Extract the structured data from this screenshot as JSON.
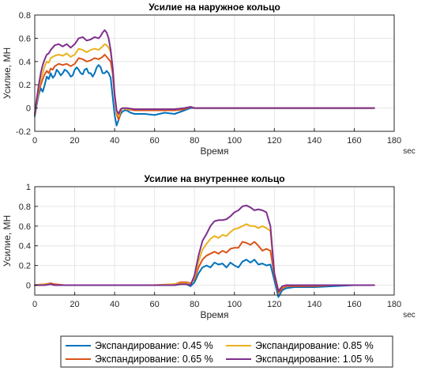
{
  "chart_data": [
    {
      "type": "line",
      "title": "Усилие на наружное кольцо",
      "xlabel": "Время",
      "xunit": "sec",
      "ylabel": "Усилие, МН",
      "xlim": [
        0,
        180
      ],
      "ylim": [
        -0.2,
        0.8
      ],
      "xticks": [
        0,
        20,
        40,
        60,
        80,
        100,
        120,
        140,
        160,
        180
      ],
      "yticks": [
        -0.2,
        0,
        0.2,
        0.4,
        0.6,
        0.8
      ],
      "ytick_labels": [
        "-0.2",
        "0",
        "0.2",
        "0.4",
        "0.6",
        "0.8"
      ],
      "grid": true,
      "series": [
        {
          "name": "Экспандирование: 0.45 %",
          "color": "#0072BD",
          "x": [
            0,
            1,
            2,
            3,
            4,
            5,
            6,
            7,
            8,
            9,
            10,
            11,
            12,
            13,
            14,
            15,
            16,
            17,
            18,
            19,
            20,
            21,
            22,
            23,
            24,
            25,
            26,
            27,
            28,
            29,
            30,
            31,
            32,
            33,
            34,
            35,
            36,
            37,
            38,
            39,
            40,
            41,
            42,
            43,
            44,
            45,
            46,
            48,
            50,
            55,
            60,
            65,
            70,
            75,
            78,
            80,
            90,
            100,
            120,
            140,
            160,
            170
          ],
          "y": [
            -0.07,
            0.03,
            0.12,
            0.17,
            0.14,
            0.2,
            0.27,
            0.25,
            0.3,
            0.26,
            0.28,
            0.33,
            0.31,
            0.28,
            0.3,
            0.33,
            0.32,
            0.3,
            0.27,
            0.28,
            0.33,
            0.35,
            0.33,
            0.3,
            0.29,
            0.33,
            0.34,
            0.3,
            0.3,
            0.27,
            0.3,
            0.35,
            0.37,
            0.35,
            0.3,
            0.3,
            0.32,
            0.3,
            0.26,
            0.1,
            -0.06,
            -0.15,
            -0.1,
            -0.05,
            -0.03,
            -0.02,
            -0.02,
            -0.04,
            -0.05,
            -0.05,
            -0.06,
            -0.04,
            -0.05,
            -0.02,
            0,
            0,
            0,
            0,
            0,
            0,
            0,
            0
          ]
        },
        {
          "name": "Экспандирование: 0.65 %",
          "color": "#D95319",
          "x": [
            0,
            1,
            2,
            3,
            4,
            5,
            6,
            7,
            8,
            9,
            10,
            12,
            14,
            16,
            18,
            20,
            22,
            24,
            26,
            28,
            30,
            32,
            34,
            35,
            36,
            37,
            38,
            39,
            40,
            41,
            42,
            43,
            44,
            46,
            50,
            60,
            70,
            75,
            78,
            80,
            90,
            100,
            120,
            140,
            160,
            170
          ],
          "y": [
            -0.06,
            0.05,
            0.14,
            0.2,
            0.25,
            0.29,
            0.32,
            0.3,
            0.34,
            0.33,
            0.36,
            0.38,
            0.37,
            0.38,
            0.36,
            0.38,
            0.43,
            0.42,
            0.4,
            0.41,
            0.43,
            0.42,
            0.44,
            0.46,
            0.44,
            0.42,
            0.4,
            0.3,
            0.1,
            -0.05,
            -0.1,
            -0.03,
            0,
            -0.01,
            -0.02,
            -0.02,
            -0.02,
            -0.01,
            0.01,
            0,
            0,
            0,
            0,
            0,
            0,
            0
          ]
        },
        {
          "name": "Экспандирование: 0.85 %",
          "color": "#EDB120",
          "x": [
            0,
            1,
            2,
            3,
            4,
            5,
            6,
            7,
            8,
            9,
            10,
            12,
            14,
            16,
            18,
            20,
            22,
            24,
            26,
            28,
            30,
            32,
            34,
            35,
            36,
            37,
            38,
            39,
            40,
            41,
            42,
            43,
            44,
            46,
            50,
            60,
            70,
            75,
            78,
            80,
            90,
            100,
            120,
            140,
            160,
            170
          ],
          "y": [
            -0.05,
            0.06,
            0.17,
            0.25,
            0.3,
            0.36,
            0.4,
            0.39,
            0.43,
            0.44,
            0.45,
            0.46,
            0.45,
            0.47,
            0.44,
            0.46,
            0.51,
            0.5,
            0.48,
            0.5,
            0.51,
            0.5,
            0.53,
            0.55,
            0.54,
            0.52,
            0.48,
            0.35,
            0.12,
            -0.03,
            -0.07,
            -0.02,
            0,
            -0.01,
            -0.01,
            -0.01,
            -0.01,
            0,
            0.01,
            0,
            0,
            0,
            0,
            0,
            0,
            0
          ]
        },
        {
          "name": "Экспандирование: 1.05 %",
          "color": "#7E2F8E",
          "x": [
            0,
            1,
            2,
            3,
            4,
            5,
            6,
            7,
            8,
            9,
            10,
            12,
            14,
            16,
            18,
            20,
            22,
            24,
            26,
            28,
            30,
            32,
            33,
            34,
            35,
            36,
            37,
            38,
            39,
            40,
            41,
            42,
            43,
            44,
            46,
            50,
            60,
            70,
            75,
            78,
            80,
            90,
            100,
            120,
            140,
            160,
            170
          ],
          "y": [
            -0.05,
            0.08,
            0.2,
            0.3,
            0.37,
            0.42,
            0.46,
            0.47,
            0.5,
            0.52,
            0.54,
            0.55,
            0.53,
            0.55,
            0.52,
            0.55,
            0.6,
            0.61,
            0.58,
            0.59,
            0.61,
            0.6,
            0.62,
            0.65,
            0.67,
            0.65,
            0.6,
            0.5,
            0.35,
            0.12,
            -0.02,
            -0.05,
            -0.01,
            0,
            0,
            -0.01,
            -0.01,
            -0.01,
            0,
            0.01,
            0,
            0,
            0,
            0,
            0,
            0,
            0
          ]
        }
      ]
    },
    {
      "type": "line",
      "title": "Усилие на внутреннее кольцо",
      "xlabel": "Время",
      "xunit": "sec",
      "ylabel": "Усилие, МН",
      "xlim": [
        0,
        180
      ],
      "ylim": [
        -0.1,
        1.0
      ],
      "xticks": [
        0,
        20,
        40,
        60,
        80,
        100,
        120,
        140,
        160,
        180
      ],
      "yticks": [
        0,
        0.2,
        0.4,
        0.6,
        0.8,
        1
      ],
      "ytick_labels": [
        "0",
        "0.2",
        "0.4",
        "0.6",
        "0.8",
        "1"
      ],
      "grid": true,
      "series": [
        {
          "name": "Экспандирование: 0.45 %",
          "color": "#0072BD",
          "x": [
            0,
            5,
            8,
            10,
            15,
            20,
            40,
            60,
            70,
            73,
            76,
            78,
            80,
            82,
            84,
            86,
            88,
            90,
            92,
            94,
            96,
            98,
            100,
            102,
            104,
            106,
            108,
            110,
            112,
            114,
            116,
            118,
            120,
            122,
            124,
            126,
            130,
            140,
            150,
            160,
            170
          ],
          "y": [
            0,
            0.01,
            0.01,
            0,
            0,
            0,
            0,
            0,
            0,
            0.01,
            0.01,
            -0.01,
            0.03,
            0.12,
            0.18,
            0.2,
            0.18,
            0.23,
            0.21,
            0.22,
            0.18,
            0.23,
            0.2,
            0.18,
            0.24,
            0.26,
            0.23,
            0.26,
            0.21,
            0.22,
            0.2,
            0.21,
            0.05,
            -0.12,
            -0.05,
            -0.03,
            -0.02,
            -0.02,
            -0.01,
            0,
            0
          ]
        },
        {
          "name": "Экспандирование: 0.65 %",
          "color": "#D95319",
          "x": [
            0,
            5,
            8,
            10,
            15,
            20,
            40,
            60,
            70,
            73,
            76,
            78,
            80,
            82,
            84,
            86,
            88,
            90,
            92,
            94,
            96,
            98,
            100,
            102,
            104,
            106,
            108,
            110,
            112,
            114,
            116,
            118,
            120,
            122,
            124,
            126,
            130,
            140,
            150,
            160,
            170
          ],
          "y": [
            0,
            0.01,
            0.02,
            0.01,
            0,
            0,
            0,
            0,
            0.01,
            0.03,
            0.03,
            0.02,
            0.06,
            0.18,
            0.26,
            0.3,
            0.32,
            0.34,
            0.32,
            0.35,
            0.33,
            0.37,
            0.38,
            0.38,
            0.44,
            0.43,
            0.41,
            0.44,
            0.4,
            0.35,
            0.37,
            0.35,
            0.1,
            -0.08,
            -0.03,
            -0.01,
            -0.01,
            -0.01,
            0,
            0,
            0
          ]
        },
        {
          "name": "Экспандирование: 0.85 %",
          "color": "#EDB120",
          "x": [
            0,
            5,
            8,
            10,
            15,
            20,
            40,
            60,
            70,
            73,
            76,
            78,
            80,
            82,
            84,
            86,
            88,
            90,
            92,
            94,
            96,
            98,
            100,
            102,
            104,
            106,
            108,
            110,
            112,
            114,
            116,
            118,
            120,
            122,
            124,
            126,
            130,
            140,
            150,
            160,
            170
          ],
          "y": [
            0,
            0.01,
            0.01,
            0,
            0,
            0,
            0,
            0,
            0.01,
            0.02,
            0.02,
            0.01,
            0.08,
            0.24,
            0.36,
            0.42,
            0.47,
            0.5,
            0.48,
            0.51,
            0.5,
            0.54,
            0.57,
            0.58,
            0.6,
            0.62,
            0.6,
            0.6,
            0.58,
            0.6,
            0.58,
            0.55,
            0.12,
            -0.05,
            -0.02,
            0,
            0,
            0,
            0,
            0,
            0
          ]
        },
        {
          "name": "Экспандирование: 1.05 %",
          "color": "#7E2F8E",
          "x": [
            0,
            5,
            8,
            10,
            15,
            20,
            40,
            60,
            70,
            73,
            76,
            78,
            80,
            82,
            84,
            86,
            88,
            90,
            92,
            94,
            96,
            98,
            100,
            102,
            104,
            106,
            108,
            110,
            112,
            114,
            116,
            118,
            120,
            122,
            124,
            126,
            130,
            140,
            150,
            160,
            170
          ],
          "y": [
            0,
            0,
            0.01,
            0,
            0,
            0,
            0,
            0,
            0,
            0.01,
            0.01,
            0,
            0.1,
            0.3,
            0.45,
            0.52,
            0.6,
            0.65,
            0.66,
            0.66,
            0.67,
            0.7,
            0.74,
            0.76,
            0.8,
            0.81,
            0.79,
            0.76,
            0.77,
            0.76,
            0.74,
            0.6,
            0.12,
            -0.06,
            -0.01,
            0,
            0,
            0,
            0,
            0,
            0
          ]
        }
      ]
    }
  ],
  "legend": [
    "Экспандирование: 0.45 %",
    "Экспандирование: 0.85 %",
    "Экспандирование: 0.65 %",
    "Экспандирование: 1.05 %"
  ]
}
